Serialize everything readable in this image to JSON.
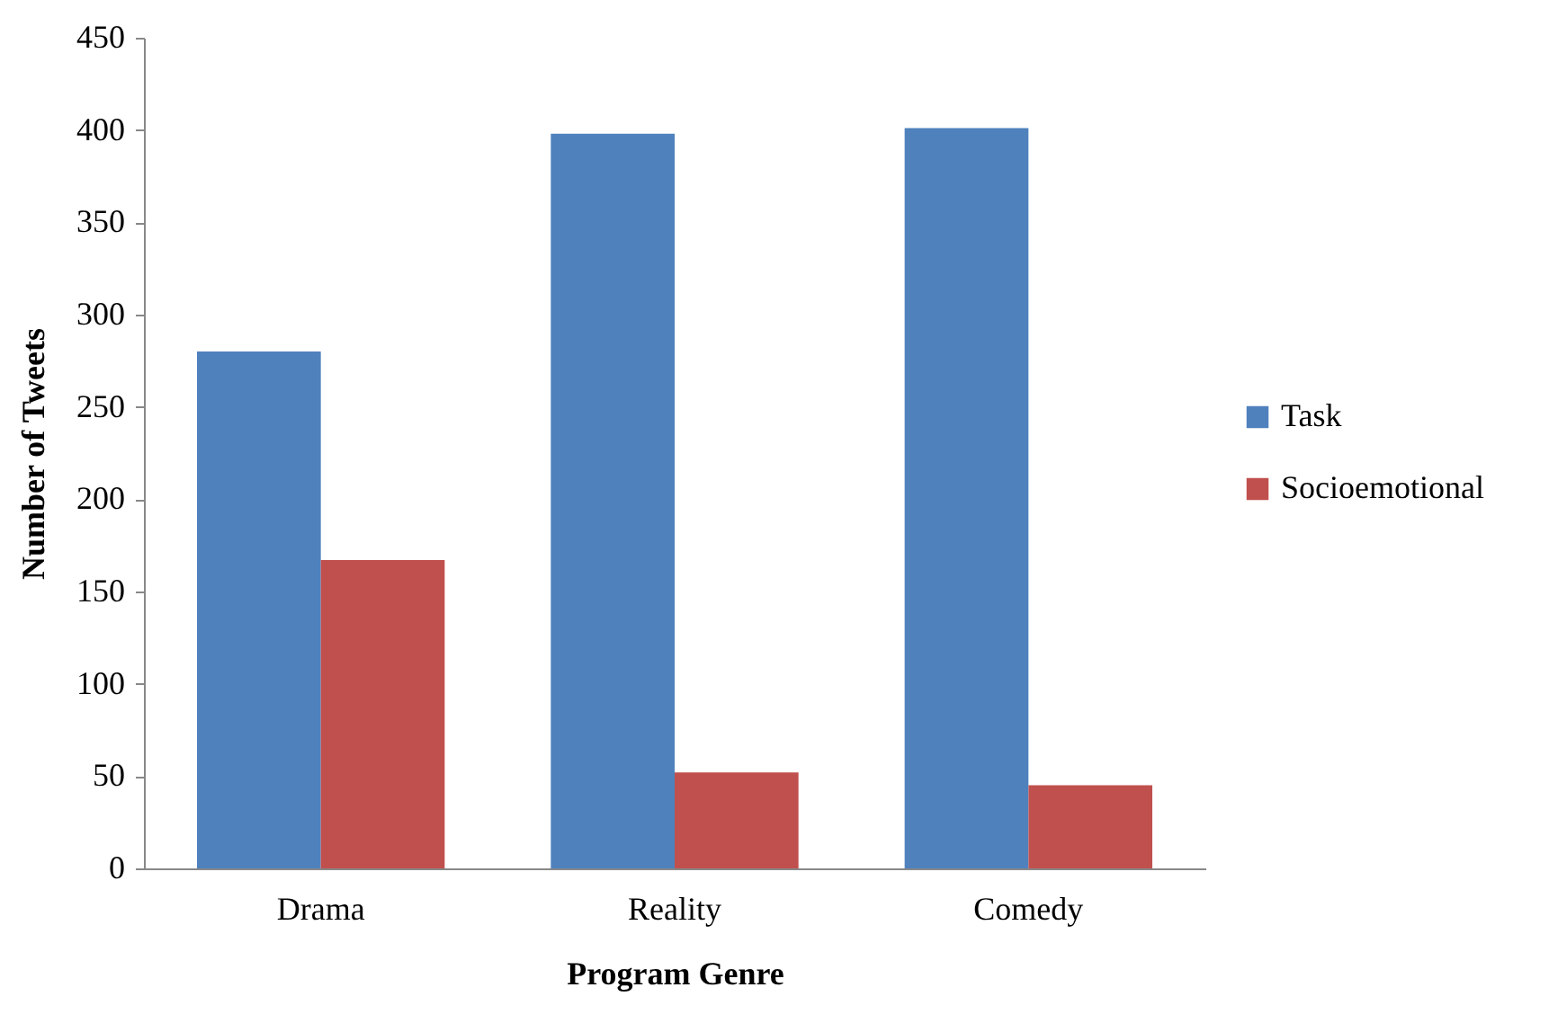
{
  "chart_data": {
    "type": "bar",
    "xlabel": "Program Genre",
    "ylabel": "Number of Tweets",
    "categories": [
      "Drama",
      "Reality",
      "Comedy"
    ],
    "series": [
      {
        "name": "Task",
        "color": "#4f81bd",
        "values": [
          280,
          398,
          401
        ]
      },
      {
        "name": "Socioemotional",
        "color": "#c0504d",
        "values": [
          167,
          52,
          45
        ]
      }
    ],
    "ylim": [
      0,
      450
    ],
    "yticks": [
      0,
      50,
      100,
      150,
      200,
      250,
      300,
      350,
      400,
      450
    ],
    "legend": "right"
  }
}
